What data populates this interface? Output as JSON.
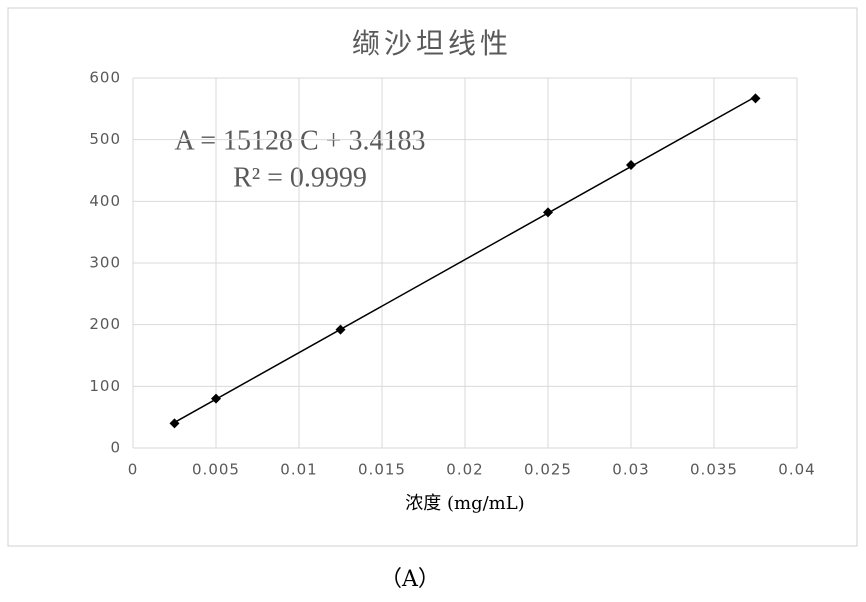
{
  "chart_data": {
    "type": "scatter",
    "title": "缬沙坦线性",
    "xlabel": "浓度 (mg/mL)",
    "annotations": [
      "A = 15128 C + 3.4183",
      "R² = 0.9999"
    ],
    "x": [
      0.0025,
      0.005,
      0.0125,
      0.025,
      0.03,
      0.0375
    ],
    "series": [
      {
        "color": "#000000",
        "values": [
          40,
          80,
          192,
          382,
          459,
          567
        ]
      }
    ],
    "trendline": true,
    "xlim": [
      0,
      0.04
    ],
    "xticks": [
      0,
      0.005,
      0.01,
      0.015,
      0.02,
      0.025,
      0.03,
      0.035,
      0.04
    ],
    "ylim": [
      0,
      600
    ],
    "yticks": [
      0,
      100,
      200,
      300,
      400,
      500,
      600
    ],
    "grid": true
  },
  "caption": "（A）"
}
